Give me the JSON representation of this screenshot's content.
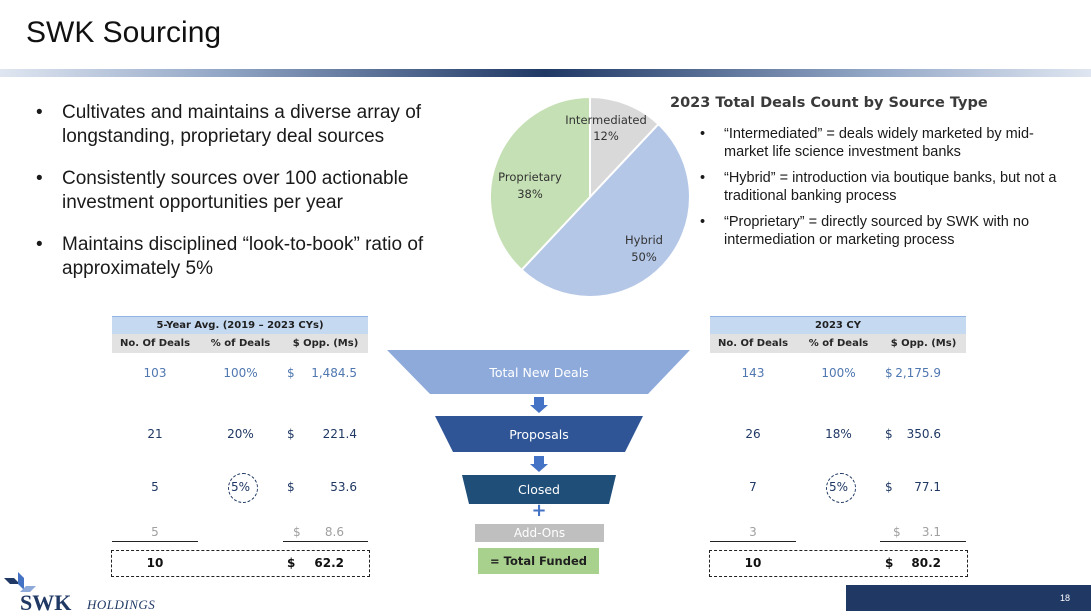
{
  "title": "SWK Sourcing",
  "left_bullets": [
    "Cultivates and maintains a diverse array of longstanding, proprietary deal sources",
    "Consistently sources over 100 actionable investment opportunities per year",
    "Maintains disciplined “look-to-book” ratio of approximately 5%"
  ],
  "chart_data": {
    "type": "pie",
    "title": "2023 Total Deals Count by Source Type",
    "slices": [
      {
        "label": "Intermediated",
        "value": 12,
        "display": "12%",
        "color": "#d9d9d9"
      },
      {
        "label": "Hybrid",
        "value": 50,
        "display": "50%",
        "color": "#b4c7e7"
      },
      {
        "label": "Proprietary",
        "value": 38,
        "display": "38%",
        "color": "#c5e0b4"
      }
    ]
  },
  "right_bullets": [
    "“Intermediated” = deals widely marketed by mid-market life science investment banks",
    "“Hybrid” = introduction via boutique banks, but not a traditional banking process",
    "“Proprietary” = directly sourced by SWK with no intermediation or marketing process"
  ],
  "left_table": {
    "header": "5-Year Avg. (2019 – 2023 CYs)",
    "columns": [
      "No. Of Deals",
      "% of Deals",
      "$ Opp. (Ms)"
    ],
    "rows": [
      {
        "deals": "103",
        "pct": "100%",
        "cur": "$",
        "opp": "1,484.5"
      },
      {
        "deals": "21",
        "pct": "20%",
        "cur": "$",
        "opp": "221.4"
      },
      {
        "deals": "5",
        "pct": "5%",
        "cur": "$",
        "opp": "53.6"
      },
      {
        "deals": "5",
        "pct": "",
        "cur": "$",
        "opp": "8.6"
      },
      {
        "deals": "10",
        "pct": "",
        "cur": "$",
        "opp": "62.2"
      }
    ]
  },
  "right_table": {
    "header": "2023 CY",
    "columns": [
      "No. Of Deals",
      "% of Deals",
      "$ Opp. (Ms)"
    ],
    "rows": [
      {
        "deals": "143",
        "pct": "100%",
        "cur": "$",
        "opp": "2,175.9"
      },
      {
        "deals": "26",
        "pct": "18%",
        "cur": "$",
        "opp": "350.6"
      },
      {
        "deals": "7",
        "pct": "5%",
        "cur": "$",
        "opp": "77.1"
      },
      {
        "deals": "3",
        "pct": "",
        "cur": "$",
        "opp": "3.1"
      },
      {
        "deals": "10",
        "pct": "",
        "cur": "$",
        "opp": "80.2"
      }
    ]
  },
  "funnel": {
    "total_new_deals": "Total New Deals",
    "proposals": "Proposals",
    "closed": "Closed",
    "add_ons": "Add-Ons",
    "total_funded": "= Total Funded",
    "plus": "+"
  },
  "footer": {
    "page_number": "18",
    "logo_main": "SWK",
    "logo_sub": "HOLDINGS"
  },
  "colors": {
    "navy": "#1f3864",
    "funnel_top": "#8eaadb",
    "funnel_mid": "#2f5597",
    "funnel_bottom": "#1f4e79",
    "addons": "#bfbfbf",
    "total_funded": "#a9d18e"
  }
}
